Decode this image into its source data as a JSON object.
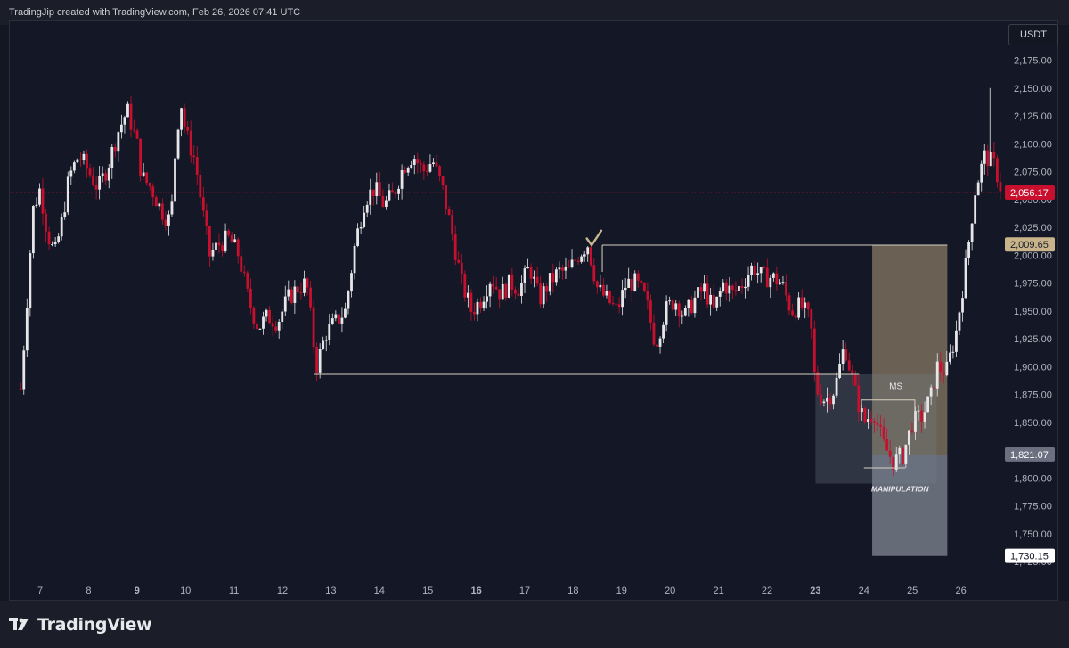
{
  "header": {
    "attribution": "TradingJip created with TradingView.com, Feb 26, 2026 07:41 UTC"
  },
  "currency": "USDT",
  "footer": {
    "brand": "TradingView"
  },
  "colors": {
    "bg": "#131722",
    "up": "#e6e6e9",
    "down": "#c8102e",
    "grid_text": "#b2b5be",
    "box_tan": "#b09c78",
    "box_gray": "#9aa0ad"
  },
  "chart_data": {
    "type": "candlestick",
    "title": "",
    "xlabel": "",
    "ylabel": "",
    "ylim": [
      1717,
      2193
    ],
    "x_ticks": [
      {
        "label": "7",
        "bold": false
      },
      {
        "label": "8",
        "bold": false
      },
      {
        "label": "9",
        "bold": true
      },
      {
        "label": "10",
        "bold": false
      },
      {
        "label": "11",
        "bold": false
      },
      {
        "label": "12",
        "bold": false
      },
      {
        "label": "13",
        "bold": false
      },
      {
        "label": "14",
        "bold": false
      },
      {
        "label": "15",
        "bold": false
      },
      {
        "label": "16",
        "bold": true
      },
      {
        "label": "17",
        "bold": false
      },
      {
        "label": "18",
        "bold": false
      },
      {
        "label": "19",
        "bold": false
      },
      {
        "label": "20",
        "bold": false
      },
      {
        "label": "21",
        "bold": false
      },
      {
        "label": "22",
        "bold": false
      },
      {
        "label": "23",
        "bold": true
      },
      {
        "label": "24",
        "bold": false
      },
      {
        "label": "25",
        "bold": false
      },
      {
        "label": "26",
        "bold": false
      }
    ],
    "y_ticks": [
      "2,175.00",
      "2,150.00",
      "2,125.00",
      "2,100.00",
      "2,075.00",
      "2,050.00",
      "2,025.00",
      "2,000.00",
      "1,975.00",
      "1,950.00",
      "1,925.00",
      "1,900.00",
      "1,875.00",
      "1,850.00",
      "1,825.00",
      "1,800.00",
      "1,775.00",
      "1,750.00",
      "1,725.00"
    ],
    "y_tick_values": [
      2175,
      2150,
      2125,
      2100,
      2075,
      2050,
      2025,
      2000,
      1975,
      1950,
      1925,
      1900,
      1875,
      1850,
      1825,
      1800,
      1775,
      1750,
      1725
    ],
    "price_labels": [
      {
        "label": "2,056.17",
        "value": 2056.17,
        "style": "current"
      },
      {
        "label": "2,009.65",
        "value": 2009.65,
        "style": "tan"
      },
      {
        "label": "1,821.07",
        "value": 1821.07,
        "style": "gray"
      },
      {
        "label": "1,730.15",
        "value": 1730.15,
        "style": "white"
      }
    ],
    "current_price": 2056.17,
    "path_points": [
      [
        6.6,
        1880
      ],
      [
        6.7,
        1940
      ],
      [
        6.85,
        2040
      ],
      [
        7.0,
        2060
      ],
      [
        7.15,
        2020
      ],
      [
        7.3,
        2000
      ],
      [
        7.45,
        2030
      ],
      [
        7.6,
        2070
      ],
      [
        7.8,
        2090
      ],
      [
        8.0,
        2075
      ],
      [
        8.2,
        2060
      ],
      [
        8.4,
        2080
      ],
      [
        8.6,
        2110
      ],
      [
        8.8,
        2130
      ],
      [
        8.9,
        2115
      ],
      [
        9.0,
        2100
      ],
      [
        9.1,
        2070
      ],
      [
        9.3,
        2060
      ],
      [
        9.5,
        2040
      ],
      [
        9.7,
        2030
      ],
      [
        9.8,
        2100
      ],
      [
        9.9,
        2140
      ],
      [
        10.0,
        2110
      ],
      [
        10.2,
        2085
      ],
      [
        10.35,
        2040
      ],
      [
        10.5,
        2000
      ],
      [
        10.7,
        2010
      ],
      [
        10.9,
        2015
      ],
      [
        11.1,
        2000
      ],
      [
        11.3,
        1960
      ],
      [
        11.5,
        1935
      ],
      [
        11.7,
        1945
      ],
      [
        11.9,
        1940
      ],
      [
        12.1,
        1960
      ],
      [
        12.3,
        1970
      ],
      [
        12.5,
        1975
      ],
      [
        12.7,
        1900
      ],
      [
        12.9,
        1930
      ],
      [
        13.1,
        1940
      ],
      [
        13.3,
        1950
      ],
      [
        13.5,
        2010
      ],
      [
        13.7,
        2050
      ],
      [
        13.9,
        2060
      ],
      [
        14.1,
        2045
      ],
      [
        14.3,
        2055
      ],
      [
        14.5,
        2080
      ],
      [
        14.7,
        2090
      ],
      [
        14.9,
        2075
      ],
      [
        15.1,
        2085
      ],
      [
        15.3,
        2060
      ],
      [
        15.5,
        2020
      ],
      [
        15.7,
        1975
      ],
      [
        15.9,
        1950
      ],
      [
        16.1,
        1960
      ],
      [
        16.3,
        1980
      ],
      [
        16.5,
        1965
      ],
      [
        16.7,
        1975
      ],
      [
        16.9,
        1970
      ],
      [
        17.1,
        1990
      ],
      [
        17.3,
        1960
      ],
      [
        17.5,
        1975
      ],
      [
        17.7,
        1985
      ],
      [
        17.9,
        1985
      ],
      [
        18.1,
        2000
      ],
      [
        18.3,
        2010
      ],
      [
        18.5,
        1970
      ],
      [
        18.7,
        1960
      ],
      [
        18.9,
        1950
      ],
      [
        19.1,
        1975
      ],
      [
        19.3,
        1975
      ],
      [
        19.5,
        1960
      ],
      [
        19.7,
        1920
      ],
      [
        19.9,
        1950
      ],
      [
        20.1,
        1960
      ],
      [
        20.3,
        1945
      ],
      [
        20.5,
        1960
      ],
      [
        20.7,
        1970
      ],
      [
        20.9,
        1950
      ],
      [
        21.1,
        1975
      ],
      [
        21.3,
        1965
      ],
      [
        21.5,
        1975
      ],
      [
        21.7,
        1990
      ],
      [
        21.9,
        1980
      ],
      [
        22.1,
        1980
      ],
      [
        22.3,
        1975
      ],
      [
        22.5,
        1950
      ],
      [
        22.7,
        1955
      ],
      [
        22.9,
        1940
      ],
      [
        23.0,
        1880
      ],
      [
        23.2,
        1870
      ],
      [
        23.4,
        1880
      ],
      [
        23.6,
        1920
      ],
      [
        23.8,
        1880
      ],
      [
        24.0,
        1850
      ],
      [
        24.2,
        1860
      ],
      [
        24.4,
        1830
      ],
      [
        24.6,
        1815
      ],
      [
        24.8,
        1820
      ],
      [
        25.0,
        1850
      ],
      [
        25.2,
        1855
      ],
      [
        25.4,
        1875
      ],
      [
        25.5,
        1900
      ],
      [
        25.7,
        1895
      ],
      [
        25.9,
        1930
      ],
      [
        26.1,
        1990
      ],
      [
        26.3,
        2060
      ],
      [
        26.5,
        2090
      ],
      [
        26.7,
        2080
      ],
      [
        26.85,
        2056.17
      ]
    ],
    "annotations": [
      {
        "type": "hline",
        "y": 1893,
        "x0": 12.65,
        "x1": 23.9
      },
      {
        "type": "hline",
        "y": 2009,
        "x0": 18.6,
        "x1": 25.72
      },
      {
        "type": "text",
        "label": "MS",
        "x": 24.52,
        "y": 1880
      },
      {
        "type": "text",
        "label": "MANIPULATION",
        "x": 24.15,
        "y": 1788
      },
      {
        "type": "box",
        "style": "tan",
        "x0": 24.17,
        "x1": 25.72,
        "y0": 1821,
        "y1": 2009
      },
      {
        "type": "box",
        "style": "gray",
        "x0": 24.17,
        "x1": 25.72,
        "y0": 1730,
        "y1": 1821
      },
      {
        "type": "box",
        "style": "dark",
        "x0": 23.0,
        "x1": 25.5,
        "y0": 1795,
        "y1": 1893
      }
    ]
  }
}
